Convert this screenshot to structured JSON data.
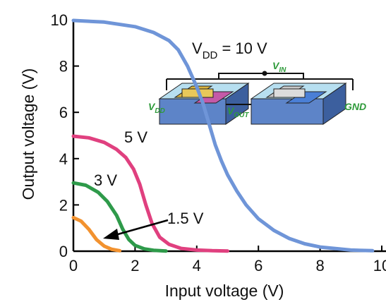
{
  "chart_data": {
    "type": "line",
    "title": "",
    "xlabel": "Input voltage (V)",
    "ylabel": "Output voltage (V)",
    "xlim": [
      0,
      10
    ],
    "ylim": [
      0,
      10
    ],
    "xticks": [
      "0",
      "2",
      "4",
      "6",
      "8",
      "10"
    ],
    "yticks": [
      "0",
      "2",
      "4",
      "6",
      "8",
      "10"
    ],
    "grid": false,
    "series": [
      {
        "name": "10 V",
        "color": "#6f95d8",
        "x": [
          0,
          1,
          2,
          2.6,
          3.1,
          3.4,
          3.7,
          4.0,
          4.2,
          4.4,
          4.6,
          4.8,
          5.0,
          5.3,
          5.6,
          6.0,
          6.5,
          7.0,
          7.5,
          8.0,
          9.0,
          9.7
        ],
        "y": [
          9.97,
          9.9,
          9.7,
          9.45,
          9.1,
          8.7,
          8.0,
          7.1,
          6.4,
          5.5,
          4.6,
          3.9,
          3.3,
          2.6,
          2.0,
          1.4,
          0.9,
          0.55,
          0.32,
          0.18,
          0.05,
          0.02
        ]
      },
      {
        "name": "5 V",
        "color": "#e0407f",
        "x": [
          0,
          0.5,
          1.0,
          1.4,
          1.7,
          1.95,
          2.15,
          2.35,
          2.55,
          2.8,
          3.1,
          3.5,
          4.0,
          4.5,
          5.0
        ],
        "y": [
          4.97,
          4.9,
          4.7,
          4.4,
          4.05,
          3.55,
          2.9,
          2.0,
          1.2,
          0.6,
          0.3,
          0.12,
          0.05,
          0.02,
          0.01
        ],
        "label": "5 V"
      },
      {
        "name": "3 V",
        "color": "#2e9a4a",
        "x": [
          0,
          0.4,
          0.8,
          1.1,
          1.4,
          1.6,
          1.8,
          2.0,
          2.3,
          2.6,
          3.0
        ],
        "y": [
          2.95,
          2.85,
          2.55,
          2.15,
          1.55,
          0.95,
          0.5,
          0.25,
          0.1,
          0.04,
          0.01
        ],
        "label": "3 V"
      },
      {
        "name": "1.5 V",
        "color": "#f2922f",
        "x": [
          0,
          0.25,
          0.5,
          0.75,
          1.0,
          1.25,
          1.5
        ],
        "y": [
          1.45,
          1.3,
          0.95,
          0.5,
          0.22,
          0.08,
          0.02
        ],
        "label": "1.5 V"
      }
    ],
    "annotations": {
      "vdd_label": "V",
      "vdd_sub": "DD",
      "vdd_value": " = 10 V",
      "arrow_label": "1.5 V"
    },
    "inset": {
      "vin_label": "V",
      "vin_sub": "IN",
      "vdd_label": "V",
      "vdd_sub": "DD",
      "vout_label": "V",
      "vout_sub": "OUT",
      "gnd_label": "GND"
    }
  }
}
